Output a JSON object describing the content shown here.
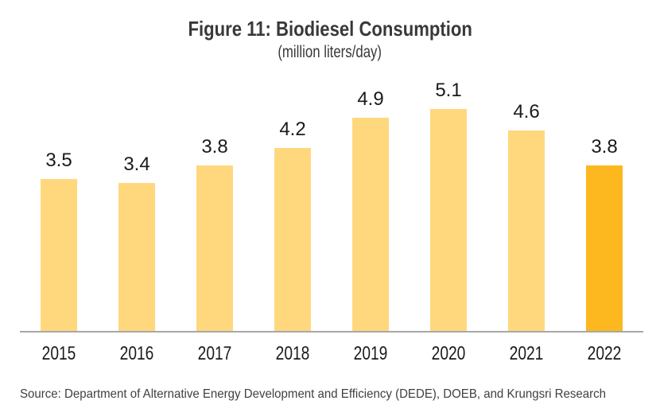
{
  "chart_data": {
    "type": "bar",
    "title": "Figure 11: Biodiesel Consumption",
    "subtitle": "(million liters/day)",
    "categories": [
      "2015",
      "2016",
      "2017",
      "2018",
      "2019",
      "2020",
      "2021",
      "2022"
    ],
    "values": [
      3.5,
      3.4,
      3.8,
      4.2,
      4.9,
      5.1,
      4.6,
      3.8
    ],
    "value_labels": [
      "3.5",
      "3.4",
      "3.8",
      "4.2",
      "4.9",
      "5.1",
      "4.6",
      "3.8"
    ],
    "highlight_index": 7,
    "xlabel": "",
    "ylabel": "",
    "ylim": [
      0,
      5.5
    ],
    "grid": false,
    "legend": false,
    "colors": {
      "bar": "#FFD87E",
      "highlight_bar": "#FCB81E",
      "axis": "#A8A8A8",
      "title_text": "#3B3838",
      "label_text": "#1A1A1A",
      "source_text": "#404040"
    }
  },
  "source_note": "Source: Department of Alternative Energy Development and Efficiency (DEDE), DOEB, and Krungsri Research"
}
